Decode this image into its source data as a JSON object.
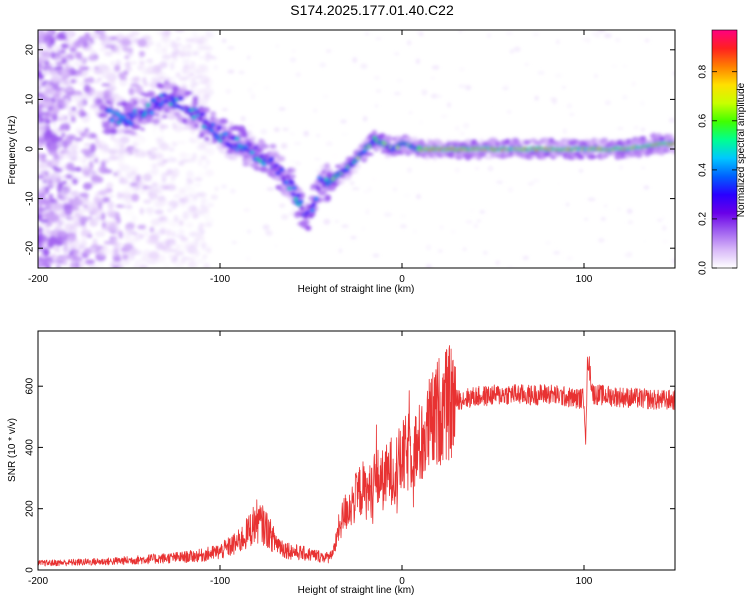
{
  "figure": {
    "title": "S174.2025.177.01.40.C22"
  },
  "chart_data": [
    {
      "type": "heatmap",
      "xlabel": "Height of straight line (km)",
      "ylabel": "Frequency (Hz)",
      "xlim": [
        -200,
        150
      ],
      "ylim": [
        -24,
        24
      ],
      "x_ticks": [
        -200,
        -100,
        0,
        100
      ],
      "y_ticks": [
        -20,
        -10,
        0,
        10,
        20
      ],
      "colorbar": {
        "label": "Normalized spectral amplitude",
        "range": [
          0,
          0.97
        ],
        "ticks": [
          0.0,
          0.2,
          0.4,
          0.6,
          0.8
        ],
        "colormap": [
          "#ffffff",
          "#d8b8f8",
          "#a060f0",
          "#6a00e8",
          "#2a00ff",
          "#0060ff",
          "#00c8ff",
          "#00ff90",
          "#40ff00",
          "#c8ff00",
          "#ffe000",
          "#ff8000",
          "#ff2020",
          "#ff0080"
        ]
      },
      "ridge": {
        "description_points_x": [
          -160,
          -150,
          -140,
          -130,
          -120,
          -110,
          -100,
          -90,
          -80,
          -70,
          -60,
          -55,
          -50,
          -45,
          -40,
          -35,
          -30,
          -25,
          -20,
          -15,
          -10,
          -5,
          0,
          10,
          20,
          40,
          60,
          80,
          100,
          120,
          140,
          150
        ],
        "description_points_y": [
          7,
          6,
          8,
          10,
          9,
          6,
          3,
          1,
          -1,
          -3,
          -8,
          -12,
          -13,
          -6,
          -7,
          -5,
          -4,
          -2,
          0,
          2,
          1,
          0,
          1,
          0,
          0,
          0,
          0,
          0,
          0,
          0,
          1,
          1
        ]
      }
    },
    {
      "type": "line",
      "xlabel": "Height of straight line (km)",
      "ylabel": "SNR (10 * v/v)",
      "xlim": [
        -200,
        150
      ],
      "ylim": [
        0,
        780
      ],
      "x_ticks": [
        -200,
        -100,
        0,
        100
      ],
      "y_ticks": [
        0,
        200,
        400,
        600
      ],
      "color": "#e83232",
      "envelope": {
        "x": [
          -200,
          -180,
          -160,
          -140,
          -120,
          -110,
          -100,
          -90,
          -85,
          -80,
          -75,
          -70,
          -65,
          -60,
          -55,
          -50,
          -45,
          -40,
          -37,
          -35,
          -32,
          -30,
          -27,
          -25,
          -22,
          -20,
          -17,
          -15,
          -12,
          -10,
          -7,
          -5,
          -2,
          0,
          3,
          5,
          8,
          10,
          13,
          15,
          18,
          20,
          25,
          30,
          40,
          50,
          60,
          70,
          80,
          90,
          95,
          100,
          101,
          102,
          105,
          110,
          120,
          130,
          140,
          150
        ],
        "y": [
          22,
          25,
          28,
          35,
          42,
          48,
          60,
          90,
          120,
          160,
          140,
          95,
          70,
          60,
          55,
          50,
          45,
          40,
          70,
          130,
          180,
          200,
          220,
          240,
          270,
          250,
          260,
          290,
          300,
          290,
          320,
          330,
          340,
          360,
          380,
          400,
          390,
          410,
          440,
          470,
          490,
          520,
          540,
          555,
          565,
          570,
          575,
          570,
          575,
          565,
          560,
          560,
          420,
          700,
          575,
          570,
          565,
          560,
          555,
          555
        ]
      }
    }
  ]
}
